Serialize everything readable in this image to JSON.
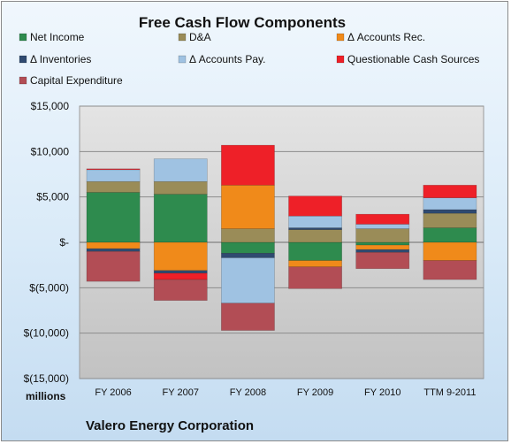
{
  "chart_data": {
    "type": "bar",
    "stacked": true,
    "title": "Free Cash Flow Components",
    "ylabel": "",
    "unit_label": "millions",
    "footer": "Valero Energy Corporation",
    "categories": [
      "FY 2006",
      "FY 2007",
      "FY 2008",
      "FY 2009",
      "FY 2010",
      "TTM 9-2011"
    ],
    "ylim": [
      -15000,
      15000
    ],
    "yticks": [
      -15000,
      -10000,
      -5000,
      0,
      5000,
      10000,
      15000
    ],
    "ytick_labels": [
      "$(15,000)",
      "$(10,000)",
      "$(5,000)",
      "$-",
      "$5,000",
      "$10,000",
      "$15,000"
    ],
    "grid": true,
    "legend_position": "top",
    "series": [
      {
        "name": "Net Income",
        "color": "#2e8b4e",
        "values": [
          5500,
          5300,
          -1200,
          -2000,
          -300,
          1600
        ]
      },
      {
        "name": "D&A",
        "color": "#9a8c58",
        "values": [
          1200,
          1400,
          1500,
          1400,
          1500,
          1600
        ]
      },
      {
        "name": "Δ Accounts Rec.",
        "color": "#f08a1a",
        "values": [
          -700,
          -3100,
          4800,
          -700,
          -500,
          -2000
        ]
      },
      {
        "name": "Δ Inventories",
        "color": "#2f4a70",
        "values": [
          -300,
          -300,
          -500,
          200,
          -300,
          400
        ]
      },
      {
        "name": "Δ Accounts Pay.",
        "color": "#9fc2e2",
        "values": [
          1300,
          2500,
          -5000,
          1300,
          500,
          1300
        ]
      },
      {
        "name": "Questionable Cash Sources",
        "color": "#ee2028",
        "values": [
          100,
          -700,
          4400,
          2200,
          1100,
          1400
        ]
      },
      {
        "name": "Capital Expenditure",
        "color": "#b24d55",
        "values": [
          -3300,
          -2300,
          -3000,
          -2400,
          -1800,
          -2100
        ]
      }
    ]
  }
}
